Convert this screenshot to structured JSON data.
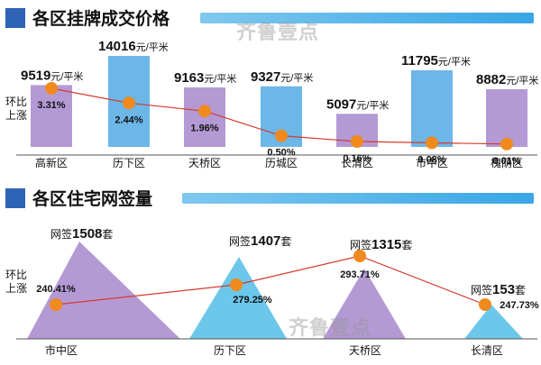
{
  "watermark": "齐鲁壹点",
  "chart_data": [
    {
      "type": "bar",
      "title": "各区挂牌成交价格",
      "categories": [
        "高新区",
        "历下区",
        "天桥区",
        "历城区",
        "长清区",
        "市中区",
        "槐荫区"
      ],
      "values": [
        9519,
        14016,
        9163,
        9327,
        5097,
        11795,
        8882
      ],
      "value_unit": "元/平米",
      "bar_colors": [
        "#b39ad4",
        "#6cb6e8",
        "#b39ad4",
        "#6cb6e8",
        "#b39ad4",
        "#6cb6e8",
        "#b39ad4"
      ],
      "line_series": {
        "name_line1": "环比",
        "name_line2": "上涨",
        "values": [
          3.31,
          2.44,
          1.96,
          0.5,
          0.16,
          0.08,
          0.01
        ],
        "labels": [
          "3.31%",
          "2.44%",
          "1.96%",
          "0.50%",
          "0.16%",
          "0.08%",
          "0.01%"
        ]
      },
      "ylim": [
        0,
        16000
      ]
    },
    {
      "type": "area",
      "title": "各区住宅网签量",
      "categories": [
        "市中区",
        "历下区",
        "天桥区",
        "长清区"
      ],
      "values": [
        1508,
        1407,
        1315,
        153
      ],
      "value_prefix": "网签",
      "value_unit": "套",
      "shape_colors": [
        "#b39ad4",
        "#6cc7ea",
        "#b39ad4",
        "#6cc7ea"
      ],
      "line_series": {
        "name_line1": "环比",
        "name_line2": "上涨",
        "values": [
          240.41,
          279.25,
          293.71,
          247.73
        ],
        "labels": [
          "240.41%",
          "279.25%",
          "293.71%",
          "247.73%"
        ]
      },
      "ylim": [
        0,
        1600
      ]
    }
  ]
}
